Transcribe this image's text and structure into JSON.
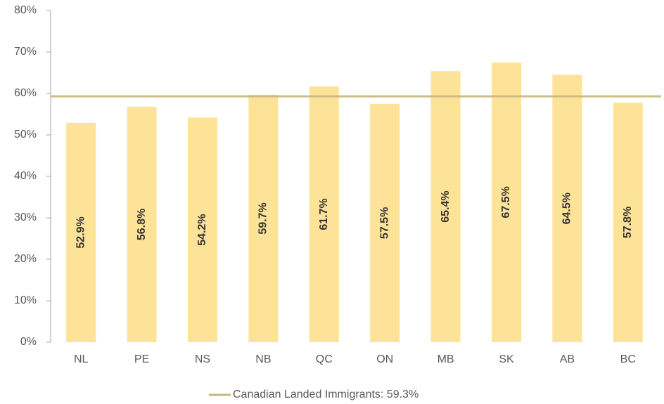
{
  "chart_data": {
    "type": "bar",
    "categories": [
      "NL",
      "PE",
      "NS",
      "NB",
      "QC",
      "ON",
      "MB",
      "SK",
      "AB",
      "BC"
    ],
    "values": [
      52.9,
      56.8,
      54.2,
      59.7,
      61.7,
      57.5,
      65.4,
      67.5,
      64.5,
      57.8
    ],
    "value_labels": [
      "52.9%",
      "56.8%",
      "54.2%",
      "59.7%",
      "61.7%",
      "57.5%",
      "65.4%",
      "67.5%",
      "64.5%",
      "57.8%"
    ],
    "color": "#fde397",
    "ylim": [
      0,
      80
    ],
    "yticks": [
      {
        "value": 0,
        "label": "0%"
      },
      {
        "value": 10,
        "label": "10%"
      },
      {
        "value": 20,
        "label": "20%"
      },
      {
        "value": 30,
        "label": "30%"
      },
      {
        "value": 40,
        "label": "40%"
      },
      {
        "value": 50,
        "label": "50%"
      },
      {
        "value": 60,
        "label": "60%"
      },
      {
        "value": 70,
        "label": "70%"
      },
      {
        "value": 80,
        "label": "80%"
      }
    ],
    "reference_line": {
      "name": "Canadian Landed Immigrants: 59.3%",
      "value": 59.3,
      "color": "#c9b67c"
    },
    "legend": "bottom"
  }
}
